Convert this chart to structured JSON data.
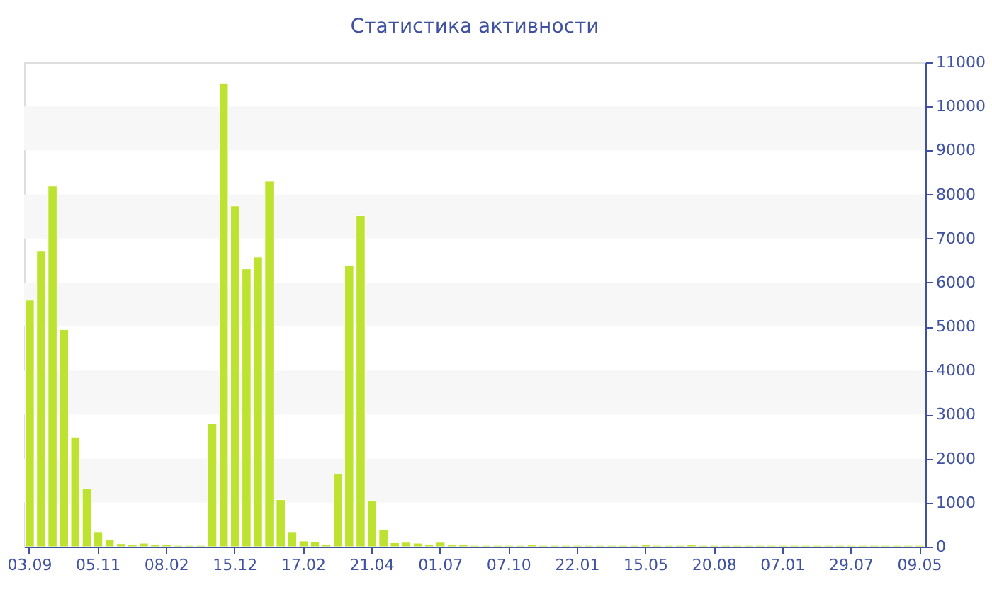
{
  "chart_data": {
    "type": "bar",
    "title": "Статистика активности",
    "categories": [
      "03.09",
      null,
      null,
      null,
      null,
      null,
      "05.11",
      null,
      null,
      null,
      null,
      null,
      "08.02",
      null,
      null,
      null,
      null,
      null,
      "15.12",
      null,
      null,
      null,
      null,
      null,
      "17.02",
      null,
      null,
      null,
      null,
      null,
      "21.04",
      null,
      null,
      null,
      null,
      null,
      "01.07",
      null,
      null,
      null,
      null,
      null,
      "07.10",
      null,
      null,
      null,
      null,
      null,
      "22.01",
      null,
      null,
      null,
      null,
      null,
      "15.05",
      null,
      null,
      null,
      null,
      null,
      "20.08",
      null,
      null,
      null,
      null,
      null,
      "07.01",
      null,
      null,
      null,
      null,
      null,
      "29.07",
      null,
      null,
      null,
      null,
      null,
      "09.05"
    ],
    "values": [
      5600,
      6710,
      8190,
      4930,
      2490,
      1310,
      340,
      170,
      70,
      50,
      80,
      50,
      50,
      30,
      30,
      30,
      2790,
      10530,
      7740,
      6310,
      6580,
      8300,
      1070,
      340,
      130,
      120,
      50,
      1650,
      6390,
      7520,
      1050,
      380,
      90,
      100,
      80,
      50,
      100,
      50,
      50,
      30,
      30,
      30,
      30,
      30,
      40,
      30,
      30,
      30,
      30,
      30,
      30,
      30,
      30,
      30,
      40,
      30,
      30,
      30,
      40,
      30,
      30,
      30,
      30,
      30,
      30,
      30,
      30,
      30,
      30,
      30,
      30,
      30,
      30,
      30,
      30,
      30,
      30,
      30,
      30
    ],
    "color": "#bde22f",
    "ylim": [
      0,
      11000
    ],
    "yticks": [
      0,
      1000,
      2000,
      3000,
      4000,
      5000,
      6000,
      7000,
      8000,
      9000,
      10000,
      11000
    ],
    "bands": [
      {
        "axis": "y",
        "from": 1000,
        "to": 2000,
        "color": "#f7f7f7"
      },
      {
        "axis": "y",
        "from": 3000,
        "to": 4000,
        "color": "#f7f7f7"
      },
      {
        "axis": "y",
        "from": 5000,
        "to": 6000,
        "color": "#f7f7f7"
      },
      {
        "axis": "y",
        "from": 7000,
        "to": 8000,
        "color": "#f7f7f7"
      },
      {
        "axis": "y",
        "from": 9000,
        "to": 10000,
        "color": "#f7f7f7"
      }
    ],
    "grid": false
  }
}
